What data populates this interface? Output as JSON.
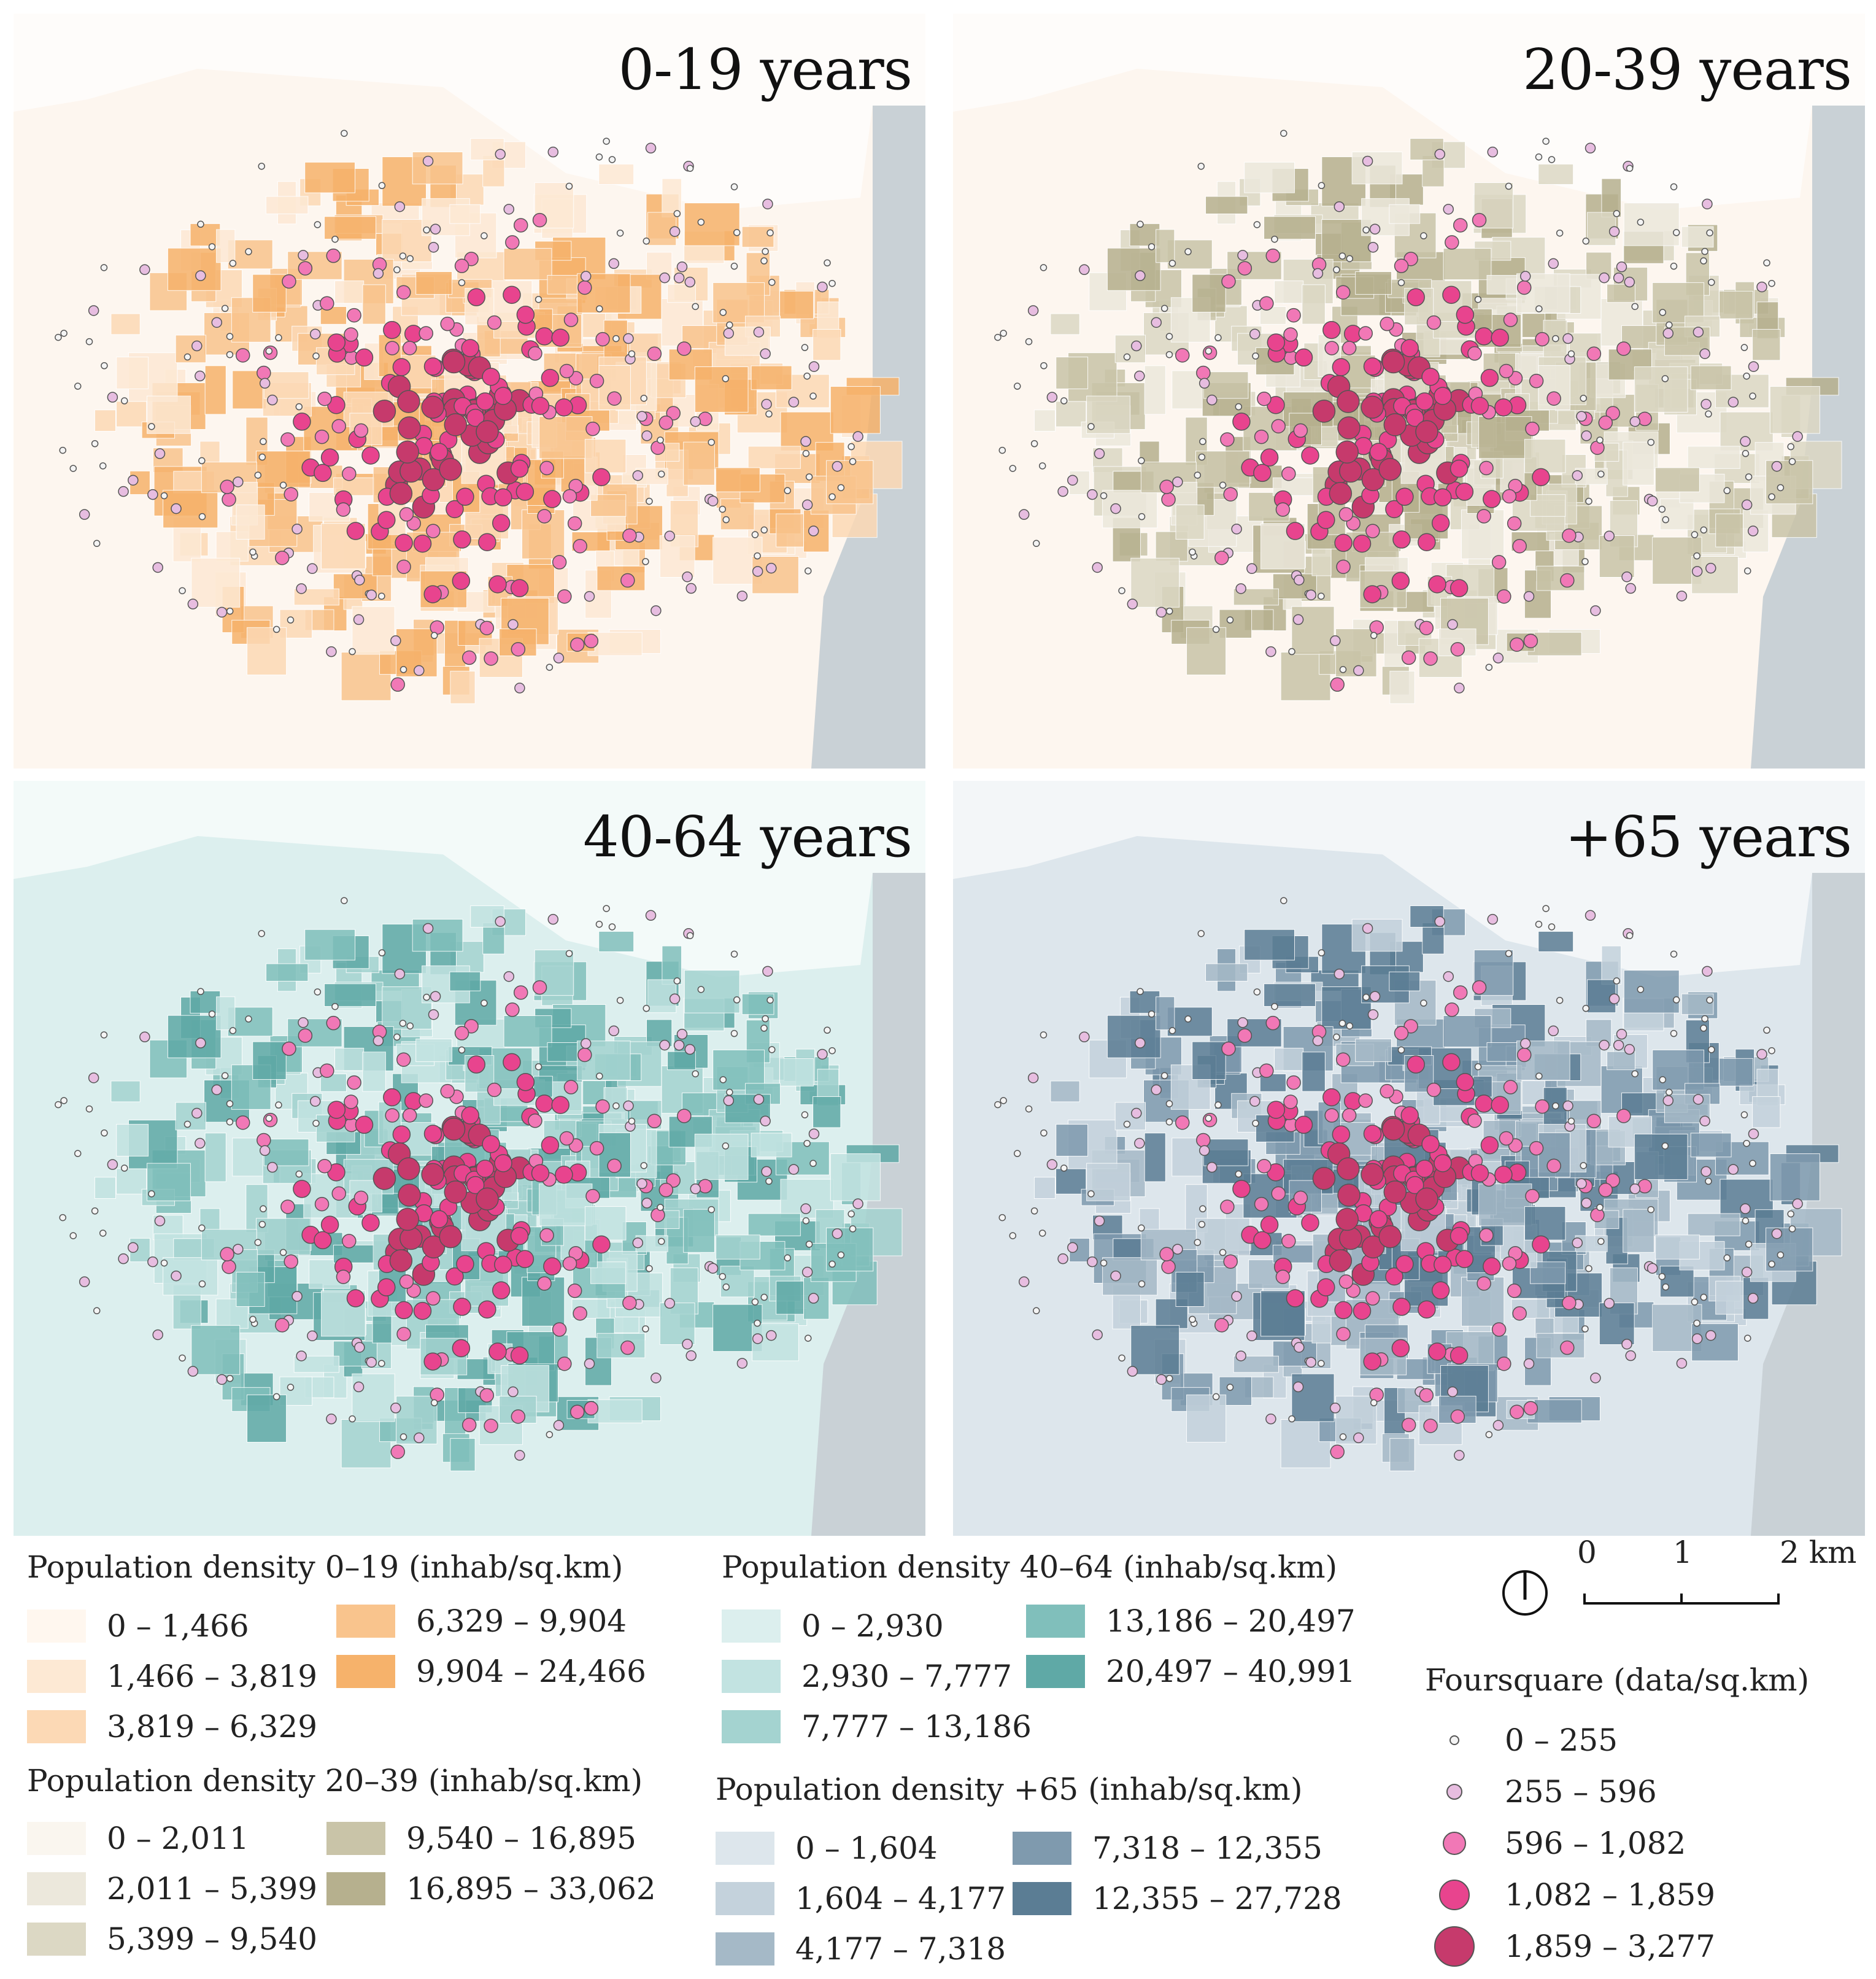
{
  "panels": [
    {
      "title": "0-19 years",
      "palette": [
        "#fff7ef",
        "#fde9d4",
        "#fcd9b5",
        "#f9c48d",
        "#f6b26b"
      ],
      "land": "#fdf6ef",
      "key": "p1"
    },
    {
      "title": "20-39 years",
      "palette": [
        "#faf6ef",
        "#ece8dc",
        "#dcd8c4",
        "#c9c4a8",
        "#b6b08e"
      ],
      "land": "#fdf6ef",
      "key": "p2"
    },
    {
      "title": "40-64 years",
      "palette": [
        "#dcefee",
        "#c2e3e1",
        "#a4d3d0",
        "#80bfbb",
        "#5fa9a6"
      ],
      "land": "#dcefee",
      "key": "p3"
    },
    {
      "title": "+65 years",
      "palette": [
        "#dde6ec",
        "#c4d2dc",
        "#a5b9c7",
        "#7f9aae",
        "#5b7d94"
      ],
      "land": "#dde6ec",
      "key": "p4"
    }
  ],
  "legends": {
    "pop_0_19": {
      "title": "Population density 0–19 (inhab/sq.km)",
      "items": [
        {
          "label": "0 – 1,466",
          "color": "#fff7ef"
        },
        {
          "label": "1,466 – 3,819",
          "color": "#fde9d4"
        },
        {
          "label": "3,819 – 6,329",
          "color": "#fcd9b5"
        },
        {
          "label": "6,329 – 9,904",
          "color": "#f9c48d"
        },
        {
          "label": "9,904 – 24,466",
          "color": "#f6b26b"
        }
      ]
    },
    "pop_20_39": {
      "title": "Population density 20–39 (inhab/sq.km)",
      "items": [
        {
          "label": "0 – 2,011",
          "color": "#faf6ef"
        },
        {
          "label": "2,011 – 5,399",
          "color": "#ece8dc"
        },
        {
          "label": "5,399 – 9,540",
          "color": "#dcd8c4"
        },
        {
          "label": "9,540 – 16,895",
          "color": "#c9c4a8"
        },
        {
          "label": "16,895 – 33,062",
          "color": "#b6b08e"
        }
      ]
    },
    "pop_40_64": {
      "title": "Population density 40–64 (inhab/sq.km)",
      "items": [
        {
          "label": "0 – 2,930",
          "color": "#dcefee"
        },
        {
          "label": "2,930 – 7,777",
          "color": "#c2e3e1"
        },
        {
          "label": "7,777 – 13,186",
          "color": "#a4d3d0"
        },
        {
          "label": "13,186 – 20,497",
          "color": "#80bfbb"
        },
        {
          "label": "20,497 – 40,991",
          "color": "#5fa9a6"
        }
      ]
    },
    "pop_65": {
      "title": "Population density +65 (inhab/sq.km)",
      "items": [
        {
          "label": "0 – 1,604",
          "color": "#dde6ec"
        },
        {
          "label": "1,604 – 4,177",
          "color": "#c4d2dc"
        },
        {
          "label": "4,177 – 7,318",
          "color": "#a5b9c7"
        },
        {
          "label": "7,318 – 12,355",
          "color": "#7f9aae"
        },
        {
          "label": "12,355 – 27,728",
          "color": "#5b7d94"
        }
      ]
    },
    "foursquare": {
      "title": "Foursquare (data/sq.km)",
      "items": [
        {
          "label": "0 – 255",
          "color": "#f4f4f4",
          "size": 16
        },
        {
          "label": "255 – 596",
          "color": "#e7bde0",
          "size": 26
        },
        {
          "label": "596 – 1,082",
          "color": "#f178b6",
          "size": 38
        },
        {
          "label": "1,082 – 1,859",
          "color": "#e8448e",
          "size": 50
        },
        {
          "label": "1,859 – 3,277",
          "color": "#c63a6c",
          "size": 66
        }
      ]
    }
  },
  "scale_bar": {
    "ticks": [
      "0",
      "1",
      "2 km"
    ]
  },
  "icons": {
    "north": "north-arrow-icon"
  }
}
